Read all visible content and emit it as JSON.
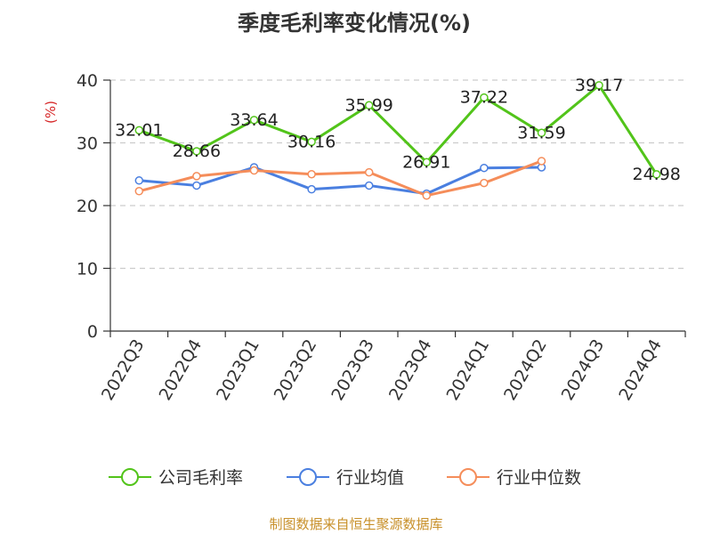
{
  "chart_data": {
    "type": "line",
    "title": "季度毛利率变化情况(%)",
    "ylabel": "(%)",
    "xlabel": "",
    "categories": [
      "2022Q3",
      "2022Q4",
      "2023Q1",
      "2023Q2",
      "2023Q3",
      "2023Q4",
      "2024Q1",
      "2024Q2",
      "2024Q3",
      "2024Q4"
    ],
    "ylim": [
      0,
      40
    ],
    "yticks": [
      0,
      10,
      20,
      30,
      40
    ],
    "grid": true,
    "legend_position": "bottom",
    "series": [
      {
        "name": "公司毛利率",
        "color": "#52c41a",
        "values": [
          32.01,
          28.66,
          33.64,
          30.16,
          35.99,
          26.91,
          37.22,
          31.59,
          39.17,
          24.98
        ],
        "labels": [
          "32.01",
          "28.66",
          "33.64",
          "30.16",
          "35.99",
          "26.91",
          "37.22",
          "31.59",
          "39.17",
          "24.98"
        ]
      },
      {
        "name": "行业均值",
        "color": "#4a7fe0",
        "values": [
          24.0,
          23.2,
          26.1,
          22.6,
          23.2,
          21.9,
          26.0,
          26.1,
          null,
          null
        ]
      },
      {
        "name": "行业中位数",
        "color": "#f58d5a",
        "values": [
          22.3,
          24.7,
          25.6,
          25.0,
          25.3,
          21.6,
          23.6,
          27.1,
          null,
          null
        ]
      }
    ]
  },
  "footer": {
    "source": "制图数据来自恒生聚源数据库"
  }
}
